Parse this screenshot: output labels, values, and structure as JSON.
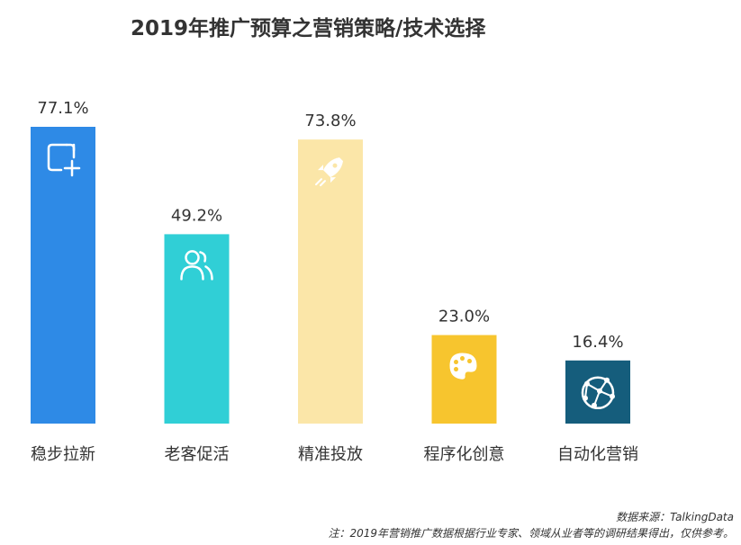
{
  "chart_data": {
    "type": "bar",
    "title": "2019年推广预算之营销策略/技术选择",
    "categories": [
      "稳步拉新",
      "老客促活",
      "精准投放",
      "程序化创意",
      "自动化营销"
    ],
    "values": [
      77.1,
      49.2,
      73.8,
      23.0,
      16.4
    ],
    "value_labels": [
      "77.1%",
      "49.2%",
      "73.8%",
      "23.0%",
      "16.4%"
    ],
    "bar_colors": [
      "#2e8ae6",
      "#30cfd6",
      "#fbe6a8",
      "#f7c52e",
      "#155d7c"
    ],
    "bar_icons": [
      "add-square-icon",
      "users-icon",
      "rocket-icon",
      "palette-icon",
      "network-globe-icon"
    ],
    "unit": "%",
    "ylim": [
      0,
      100
    ],
    "grid": false,
    "legend": "none"
  },
  "footer": {
    "source": "数据来源：TalkingData",
    "note": "注：2019年营销推广数据根据行业专家、领域从业者等的调研结果得出，仅供参考。"
  }
}
